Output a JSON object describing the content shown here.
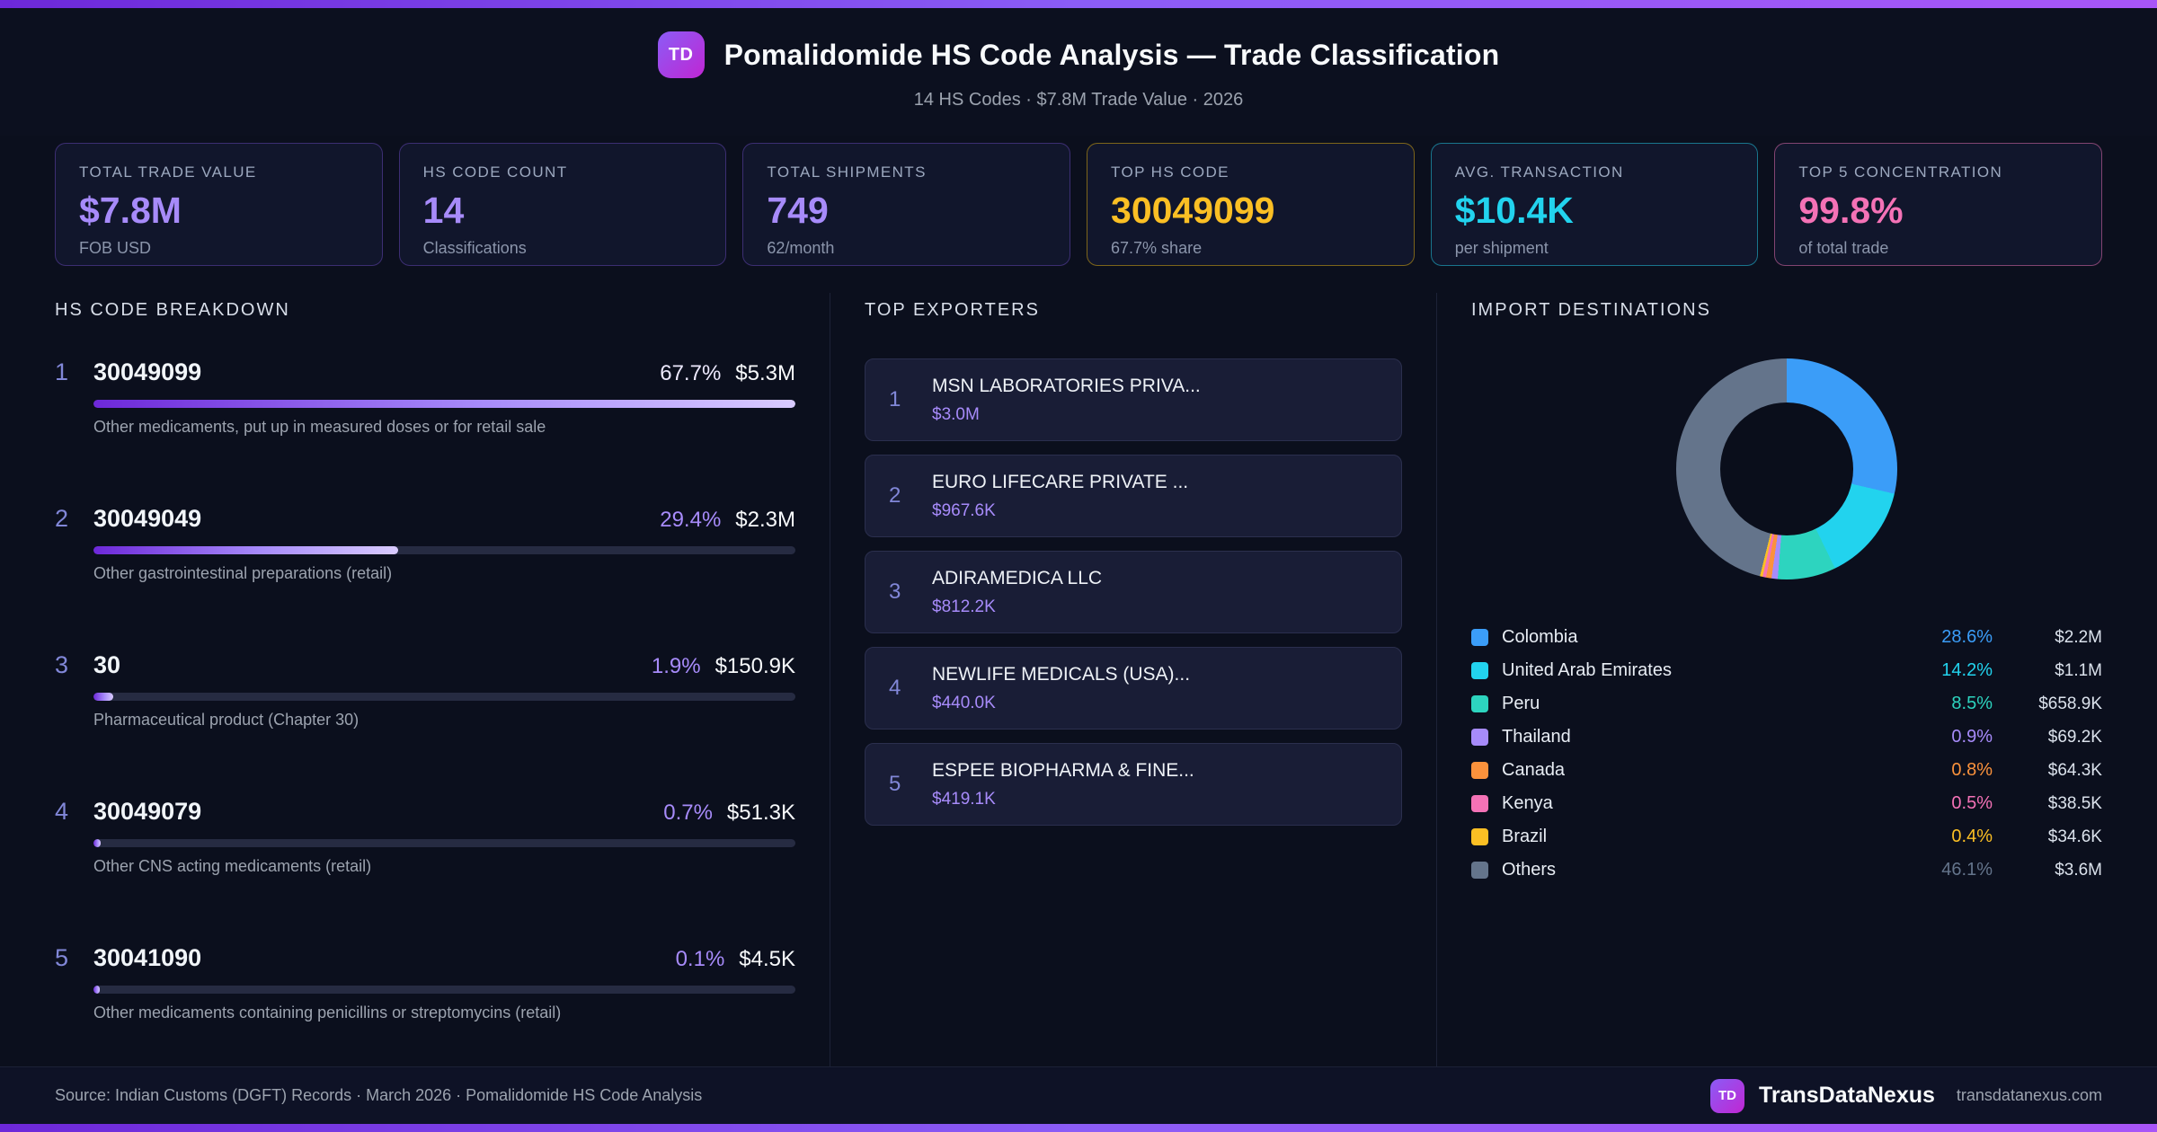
{
  "header": {
    "badge": "TD",
    "title": "Pomalidomide HS Code Analysis — Trade Classification",
    "subtitle": "14 HS Codes · $7.8M Trade Value · 2026"
  },
  "stats": [
    {
      "label": "TOTAL TRADE VALUE",
      "value": "$7.8M",
      "sub": "FOB USD",
      "color": "#a78bfa",
      "border": "rgba(139,92,246,0.35)"
    },
    {
      "label": "HS CODE COUNT",
      "value": "14",
      "sub": "Classifications",
      "color": "#a78bfa",
      "border": "rgba(139,92,246,0.35)"
    },
    {
      "label": "TOTAL SHIPMENTS",
      "value": "749",
      "sub": "62/month",
      "color": "#a78bfa",
      "border": "rgba(139,92,246,0.35)"
    },
    {
      "label": "TOP HS CODE",
      "value": "30049099",
      "sub": "67.7% share",
      "color": "#fbbf24",
      "border": "rgba(234,179,8,0.5)"
    },
    {
      "label": "AVG. TRANSACTION",
      "value": "$10.4K",
      "sub": "per shipment",
      "color": "#22d3ee",
      "border": "rgba(34,211,238,0.5)"
    },
    {
      "label": "TOP 5 CONCENTRATION",
      "value": "99.8%",
      "sub": "of total trade",
      "color": "#f472b6",
      "border": "rgba(244,114,182,0.5)"
    }
  ],
  "hs_breakdown": {
    "title": "HS CODE BREAKDOWN",
    "rows": [
      {
        "rank": "1",
        "code": "30049099",
        "pct": 67.7,
        "pct_label": "67.7%",
        "pct_color": "#ede9fe",
        "value": "$5.3M",
        "desc": "Other medicaments, put up in measured doses or for retail sale"
      },
      {
        "rank": "2",
        "code": "30049049",
        "pct": 29.4,
        "pct_label": "29.4%",
        "pct_color": "#a78bfa",
        "value": "$2.3M",
        "desc": "Other gastrointestinal preparations (retail)"
      },
      {
        "rank": "3",
        "code": "30",
        "pct": 1.9,
        "pct_label": "1.9%",
        "pct_color": "#a78bfa",
        "value": "$150.9K",
        "desc": "Pharmaceutical product (Chapter 30)"
      },
      {
        "rank": "4",
        "code": "30049079",
        "pct": 0.7,
        "pct_label": "0.7%",
        "pct_color": "#a78bfa",
        "value": "$51.3K",
        "desc": "Other CNS acting medicaments (retail)"
      },
      {
        "rank": "5",
        "code": "30041090",
        "pct": 0.1,
        "pct_label": "0.1%",
        "pct_color": "#a78bfa",
        "value": "$4.5K",
        "desc": "Other medicaments containing penicillins or streptomycins (retail)"
      }
    ]
  },
  "exporters": {
    "title": "TOP EXPORTERS",
    "rows": [
      {
        "rank": "1",
        "name": "MSN LABORATORIES PRIVA...",
        "value": "$3.0M"
      },
      {
        "rank": "2",
        "name": "EURO LIFECARE PRIVATE ...",
        "value": "$967.6K"
      },
      {
        "rank": "3",
        "name": "ADIRAMEDICA LLC",
        "value": "$812.2K"
      },
      {
        "rank": "4",
        "name": "NEWLIFE MEDICALS (USA)...",
        "value": "$440.0K"
      },
      {
        "rank": "5",
        "name": "ESPEE BIOPHARMA & FINE...",
        "value": "$419.1K"
      }
    ]
  },
  "destinations": {
    "title": "IMPORT DESTINATIONS"
  },
  "chart_data": {
    "type": "pie",
    "title": "IMPORT DESTINATIONS",
    "donut": true,
    "legend_position": "bottom",
    "labels": [
      "Colombia",
      "United Arab Emirates",
      "Peru",
      "Thailand",
      "Canada",
      "Kenya",
      "Brazil",
      "Others"
    ],
    "values": [
      28.6,
      14.2,
      8.5,
      0.9,
      0.8,
      0.5,
      0.4,
      46.1
    ],
    "pct_labels": [
      "28.6%",
      "14.2%",
      "8.5%",
      "0.9%",
      "0.8%",
      "0.5%",
      "0.4%",
      "46.1%"
    ],
    "value_labels": [
      "$2.2M",
      "$1.1M",
      "$658.9K",
      "$69.2K",
      "$64.3K",
      "$38.5K",
      "$34.6K",
      "$3.6M"
    ],
    "colors": [
      "#3b9df8",
      "#22d3ee",
      "#2dd4bf",
      "#a78bfa",
      "#fb923c",
      "#f472b6",
      "#fbbf24",
      "#64748b"
    ]
  },
  "footer": {
    "source": "Source: Indian Customs (DGFT) Records · March 2026 · Pomalidomide HS Code Analysis",
    "badge": "TD",
    "brand": "TransDataNexus",
    "site": "transdatanexus.com"
  }
}
